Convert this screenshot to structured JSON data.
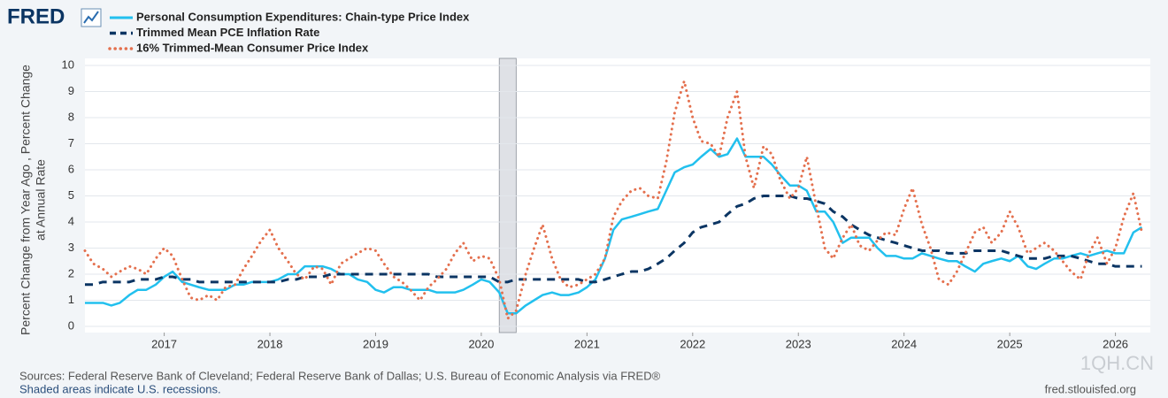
{
  "chart_data": {
    "type": "line",
    "brand": "FRED",
    "ylabel": [
      "Percent Change from Year Ago , Percent Change",
      "at Annual Rate"
    ],
    "source": "Sources: Federal Reserve Bank of Cleveland; Federal Reserve Bank of Dallas; U.S. Bureau of Economic Analysis via FRED®",
    "note": "Shaded areas indicate U.S. recessions.",
    "site": "fred.stlouisfed.org",
    "watermark": "1QH.CN",
    "xlim": [
      2016.25,
      2026.33
    ],
    "xticks": [
      2017,
      2018,
      2019,
      2020,
      2021,
      2022,
      2023,
      2024,
      2025,
      2026
    ],
    "ylim": [
      0,
      10
    ],
    "yticks": [
      0,
      1,
      2,
      3,
      4,
      5,
      6,
      7,
      8,
      9,
      10
    ],
    "grid": true,
    "recessions": [
      {
        "start": 2020.17,
        "end": 2020.33
      }
    ],
    "x": [
      2016.25,
      2016.33,
      2016.42,
      2016.5,
      2016.58,
      2016.67,
      2016.75,
      2016.83,
      2016.92,
      2017,
      2017.08,
      2017.17,
      2017.25,
      2017.33,
      2017.42,
      2017.5,
      2017.58,
      2017.67,
      2017.75,
      2017.83,
      2017.92,
      2018,
      2018.08,
      2018.17,
      2018.25,
      2018.33,
      2018.42,
      2018.5,
      2018.58,
      2018.67,
      2018.75,
      2018.83,
      2018.92,
      2019,
      2019.08,
      2019.17,
      2019.25,
      2019.33,
      2019.42,
      2019.5,
      2019.58,
      2019.67,
      2019.75,
      2019.83,
      2019.92,
      2020,
      2020.08,
      2020.17,
      2020.25,
      2020.33,
      2020.42,
      2020.5,
      2020.58,
      2020.67,
      2020.75,
      2020.83,
      2020.92,
      2021,
      2021.08,
      2021.17,
      2021.25,
      2021.33,
      2021.42,
      2021.5,
      2021.58,
      2021.67,
      2021.75,
      2021.83,
      2021.92,
      2022,
      2022.08,
      2022.17,
      2022.25,
      2022.33,
      2022.42,
      2022.5,
      2022.58,
      2022.67,
      2022.75,
      2022.83,
      2022.92,
      2023,
      2023.08,
      2023.17,
      2023.25,
      2023.33,
      2023.42,
      2023.5,
      2023.58,
      2023.67,
      2023.75,
      2023.83,
      2023.92,
      2024,
      2024.08,
      2024.17,
      2024.25,
      2024.33,
      2024.42,
      2024.5,
      2024.58,
      2024.67,
      2024.75,
      2024.83,
      2024.92,
      2025,
      2025.08,
      2025.17,
      2025.25,
      2025.33,
      2025.42,
      2025.5,
      2025.58,
      2025.67,
      2025.75,
      2025.83,
      2025.92,
      2026,
      2026.08,
      2026.17,
      2026.25
    ],
    "series": [
      {
        "name": "Personal Consumption Expenditures: Chain-type Price Index",
        "color": "#22c0ee",
        "style": "solid",
        "values": [
          0.9,
          0.9,
          0.9,
          0.8,
          0.9,
          1.2,
          1.4,
          1.4,
          1.6,
          1.9,
          2.1,
          1.7,
          1.6,
          1.5,
          1.4,
          1.4,
          1.4,
          1.6,
          1.6,
          1.7,
          1.7,
          1.7,
          1.8,
          2.0,
          2.0,
          2.3,
          2.3,
          2.3,
          2.2,
          2.0,
          2.0,
          1.8,
          1.7,
          1.4,
          1.3,
          1.5,
          1.5,
          1.4,
          1.4,
          1.4,
          1.3,
          1.3,
          1.3,
          1.4,
          1.6,
          1.8,
          1.7,
          1.3,
          0.5,
          0.5,
          0.8,
          1.0,
          1.2,
          1.3,
          1.2,
          1.2,
          1.3,
          1.5,
          1.8,
          2.6,
          3.7,
          4.1,
          4.2,
          4.3,
          4.4,
          4.5,
          5.2,
          5.9,
          6.1,
          6.2,
          6.5,
          6.8,
          6.5,
          6.6,
          7.2,
          6.5,
          6.5,
          6.5,
          6.2,
          5.8,
          5.4,
          5.4,
          5.2,
          4.4,
          4.4,
          4.0,
          3.2,
          3.4,
          3.4,
          3.4,
          3.0,
          2.7,
          2.7,
          2.6,
          2.6,
          2.8,
          2.7,
          2.6,
          2.5,
          2.5,
          2.3,
          2.1,
          2.4,
          2.5,
          2.6,
          2.5,
          2.7,
          2.3,
          2.2,
          2.4,
          2.6,
          2.6,
          2.7,
          2.8,
          2.7,
          2.8,
          2.9,
          2.8,
          2.8,
          3.6,
          3.8
        ]
      },
      {
        "name": "Trimmed Mean PCE Inflation Rate",
        "color": "#0b3563",
        "style": "dashed",
        "values": [
          1.6,
          1.6,
          1.7,
          1.7,
          1.7,
          1.7,
          1.8,
          1.8,
          1.8,
          1.9,
          1.9,
          1.8,
          1.8,
          1.7,
          1.7,
          1.7,
          1.7,
          1.7,
          1.7,
          1.7,
          1.7,
          1.7,
          1.7,
          1.8,
          1.8,
          1.9,
          1.9,
          1.9,
          2.0,
          2.0,
          2.0,
          2.0,
          2.0,
          2.0,
          2.0,
          2.0,
          2.0,
          2.0,
          2.0,
          2.0,
          1.9,
          1.9,
          1.9,
          1.9,
          1.9,
          1.9,
          1.9,
          1.7,
          1.7,
          1.8,
          1.8,
          1.8,
          1.8,
          1.8,
          1.8,
          1.8,
          1.8,
          1.7,
          1.7,
          1.8,
          1.9,
          2.0,
          2.1,
          2.1,
          2.2,
          2.4,
          2.6,
          2.9,
          3.2,
          3.6,
          3.8,
          3.9,
          4.0,
          4.3,
          4.6,
          4.7,
          4.9,
          5.0,
          5.0,
          5.0,
          5.0,
          4.9,
          4.9,
          4.8,
          4.7,
          4.4,
          4.2,
          3.9,
          3.7,
          3.5,
          3.4,
          3.3,
          3.2,
          3.1,
          3.0,
          2.9,
          2.9,
          2.9,
          2.8,
          2.8,
          2.8,
          2.9,
          2.9,
          2.9,
          2.9,
          2.8,
          2.7,
          2.6,
          2.6,
          2.6,
          2.7,
          2.7,
          2.7,
          2.6,
          2.5,
          2.4,
          2.4,
          2.3,
          2.3,
          2.3,
          2.3
        ]
      },
      {
        "name": "16% Trimmed-Mean Consumer Price Index",
        "color": "#e4704e",
        "style": "dotted",
        "values": [
          2.9,
          2.4,
          2.2,
          1.9,
          2.1,
          2.3,
          2.2,
          2.0,
          2.6,
          3.0,
          2.7,
          1.8,
          1.1,
          1.0,
          1.2,
          1.0,
          1.5,
          1.6,
          2.2,
          2.7,
          3.3,
          3.7,
          3.0,
          2.5,
          2.0,
          1.8,
          2.3,
          2.2,
          1.6,
          2.4,
          2.6,
          2.8,
          3.0,
          2.9,
          2.4,
          1.9,
          1.7,
          1.4,
          1.0,
          1.5,
          1.8,
          2.2,
          2.8,
          3.2,
          2.5,
          2.7,
          2.6,
          1.8,
          0.3,
          0.6,
          2.0,
          3.0,
          3.9,
          2.6,
          1.8,
          1.5,
          1.6,
          1.8,
          2.0,
          2.6,
          4.2,
          4.8,
          5.2,
          5.3,
          5.0,
          4.9,
          6.3,
          8.2,
          9.4,
          8.0,
          7.1,
          7.0,
          6.5,
          8.0,
          9.0,
          6.5,
          5.3,
          6.9,
          6.6,
          5.6,
          4.9,
          5.3,
          6.5,
          4.6,
          3.0,
          2.6,
          3.4,
          3.9,
          3.1,
          2.9,
          3.3,
          3.6,
          3.5,
          4.5,
          5.3,
          3.9,
          3.0,
          1.8,
          1.6,
          2.1,
          2.8,
          3.6,
          3.8,
          3.2,
          3.6,
          4.4,
          3.8,
          2.8,
          3.0,
          3.2,
          2.9,
          2.5,
          2.1,
          1.8,
          2.8,
          3.4,
          2.4,
          3.0,
          4.2,
          5.1,
          3.6
        ]
      }
    ]
  }
}
